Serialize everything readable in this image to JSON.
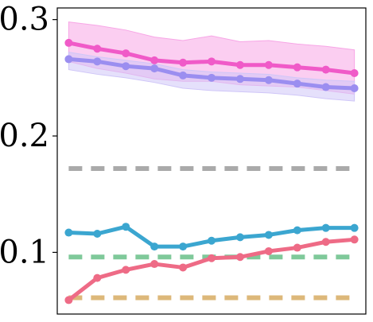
{
  "chart_data": {
    "type": "line",
    "title": "",
    "xlabel": "",
    "ylabel": "",
    "x": [
      1,
      2,
      3,
      4,
      5,
      6,
      7,
      8,
      9,
      10,
      11
    ],
    "xlim": [
      0.6,
      11.4
    ],
    "ylim": [
      0.047,
      0.31
    ],
    "yticks": [
      0.1,
      0.2,
      0.3
    ],
    "ytick_labels": [
      "0.1",
      "0.2",
      "0.3"
    ],
    "grid": false,
    "legend": "none",
    "series": [
      {
        "color": "#f05ac8",
        "style": "solid-marker",
        "values": [
          0.28,
          0.275,
          0.271,
          0.265,
          0.263,
          0.264,
          0.261,
          0.261,
          0.259,
          0.257,
          0.254
        ],
        "band_upper": [
          0.298,
          0.295,
          0.291,
          0.285,
          0.282,
          0.286,
          0.281,
          0.282,
          0.279,
          0.277,
          0.274
        ],
        "band_lower": [
          0.264,
          0.258,
          0.254,
          0.249,
          0.247,
          0.247,
          0.244,
          0.243,
          0.242,
          0.239,
          0.236
        ],
        "band_color": "#f7a6e6"
      },
      {
        "color": "#9b8ef0",
        "style": "solid-marker",
        "values": [
          0.266,
          0.264,
          0.26,
          0.258,
          0.252,
          0.25,
          0.249,
          0.248,
          0.245,
          0.242,
          0.241
        ],
        "band_upper": [
          0.272,
          0.268,
          0.265,
          0.262,
          0.257,
          0.255,
          0.254,
          0.253,
          0.25,
          0.248,
          0.247
        ],
        "band_lower": [
          0.257,
          0.253,
          0.25,
          0.246,
          0.241,
          0.239,
          0.238,
          0.237,
          0.235,
          0.232,
          0.23
        ],
        "band_color": "#cfc6f8"
      },
      {
        "color": "#3ba6d0",
        "style": "solid-marker",
        "values": [
          0.117,
          0.116,
          0.122,
          0.105,
          0.105,
          0.11,
          0.113,
          0.115,
          0.119,
          0.121,
          0.121
        ]
      },
      {
        "color": "#ee6b86",
        "style": "solid-marker",
        "values": [
          0.059,
          0.078,
          0.085,
          0.09,
          0.087,
          0.095,
          0.096,
          0.101,
          0.104,
          0.109,
          0.111
        ]
      },
      {
        "color": "#aaaaaa",
        "style": "dashed",
        "values": [
          0.172,
          0.172,
          0.172,
          0.172,
          0.172,
          0.172,
          0.172,
          0.172,
          0.172,
          0.172,
          0.172
        ]
      },
      {
        "color": "#7fc99a",
        "style": "dashed",
        "values": [
          0.096,
          0.096,
          0.096,
          0.096,
          0.096,
          0.096,
          0.096,
          0.096,
          0.096,
          0.096,
          0.096
        ]
      },
      {
        "color": "#ddb87a",
        "style": "dashed",
        "values": [
          0.061,
          0.061,
          0.061,
          0.061,
          0.061,
          0.061,
          0.061,
          0.061,
          0.061,
          0.061,
          0.061
        ]
      }
    ]
  }
}
